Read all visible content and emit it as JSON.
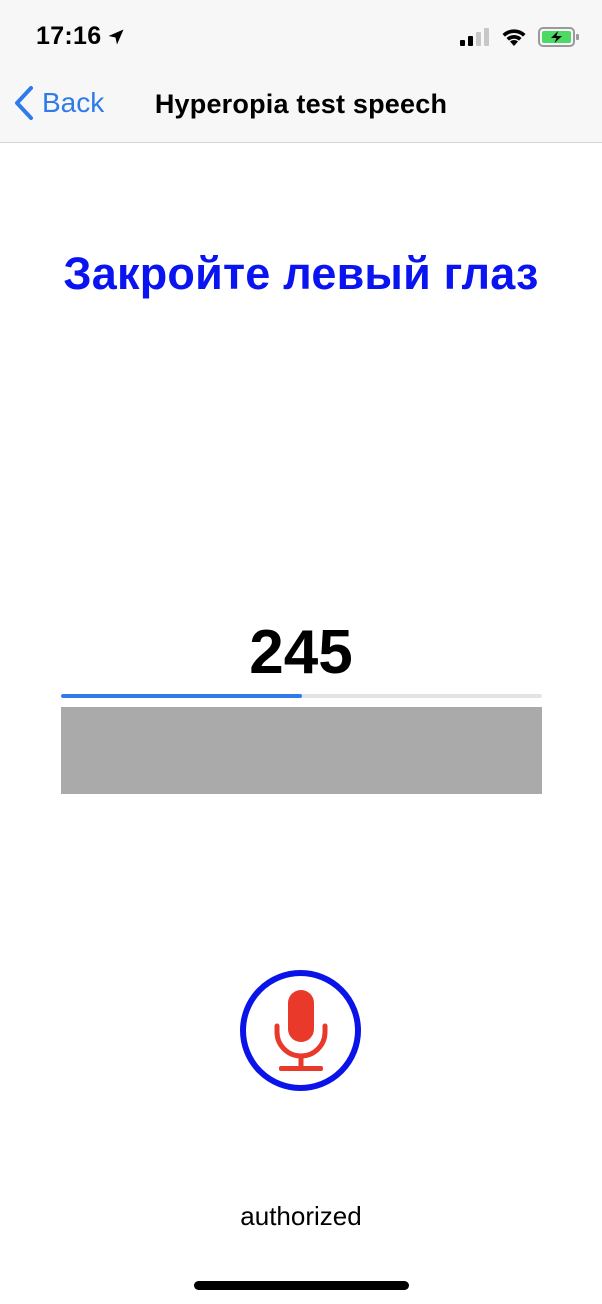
{
  "status_bar": {
    "time": "17:16",
    "icons": [
      "location-arrow-icon",
      "cellular-signal-icon",
      "wifi-icon",
      "battery-charging-icon"
    ]
  },
  "nav": {
    "back_label": "Back",
    "title": "Hyperopia test speech"
  },
  "main": {
    "instruction": "Закройте левый глаз",
    "counter": "245",
    "progress_fraction": 0.5,
    "status": "authorized"
  },
  "colors": {
    "accent_blue": "#2f7bea",
    "instruction_blue": "#0a14f0",
    "mic_red": "#e8392a",
    "mic_ring": "#0a14e8",
    "block_gray": "#aaaaaa",
    "battery_green": "#4cd964"
  }
}
